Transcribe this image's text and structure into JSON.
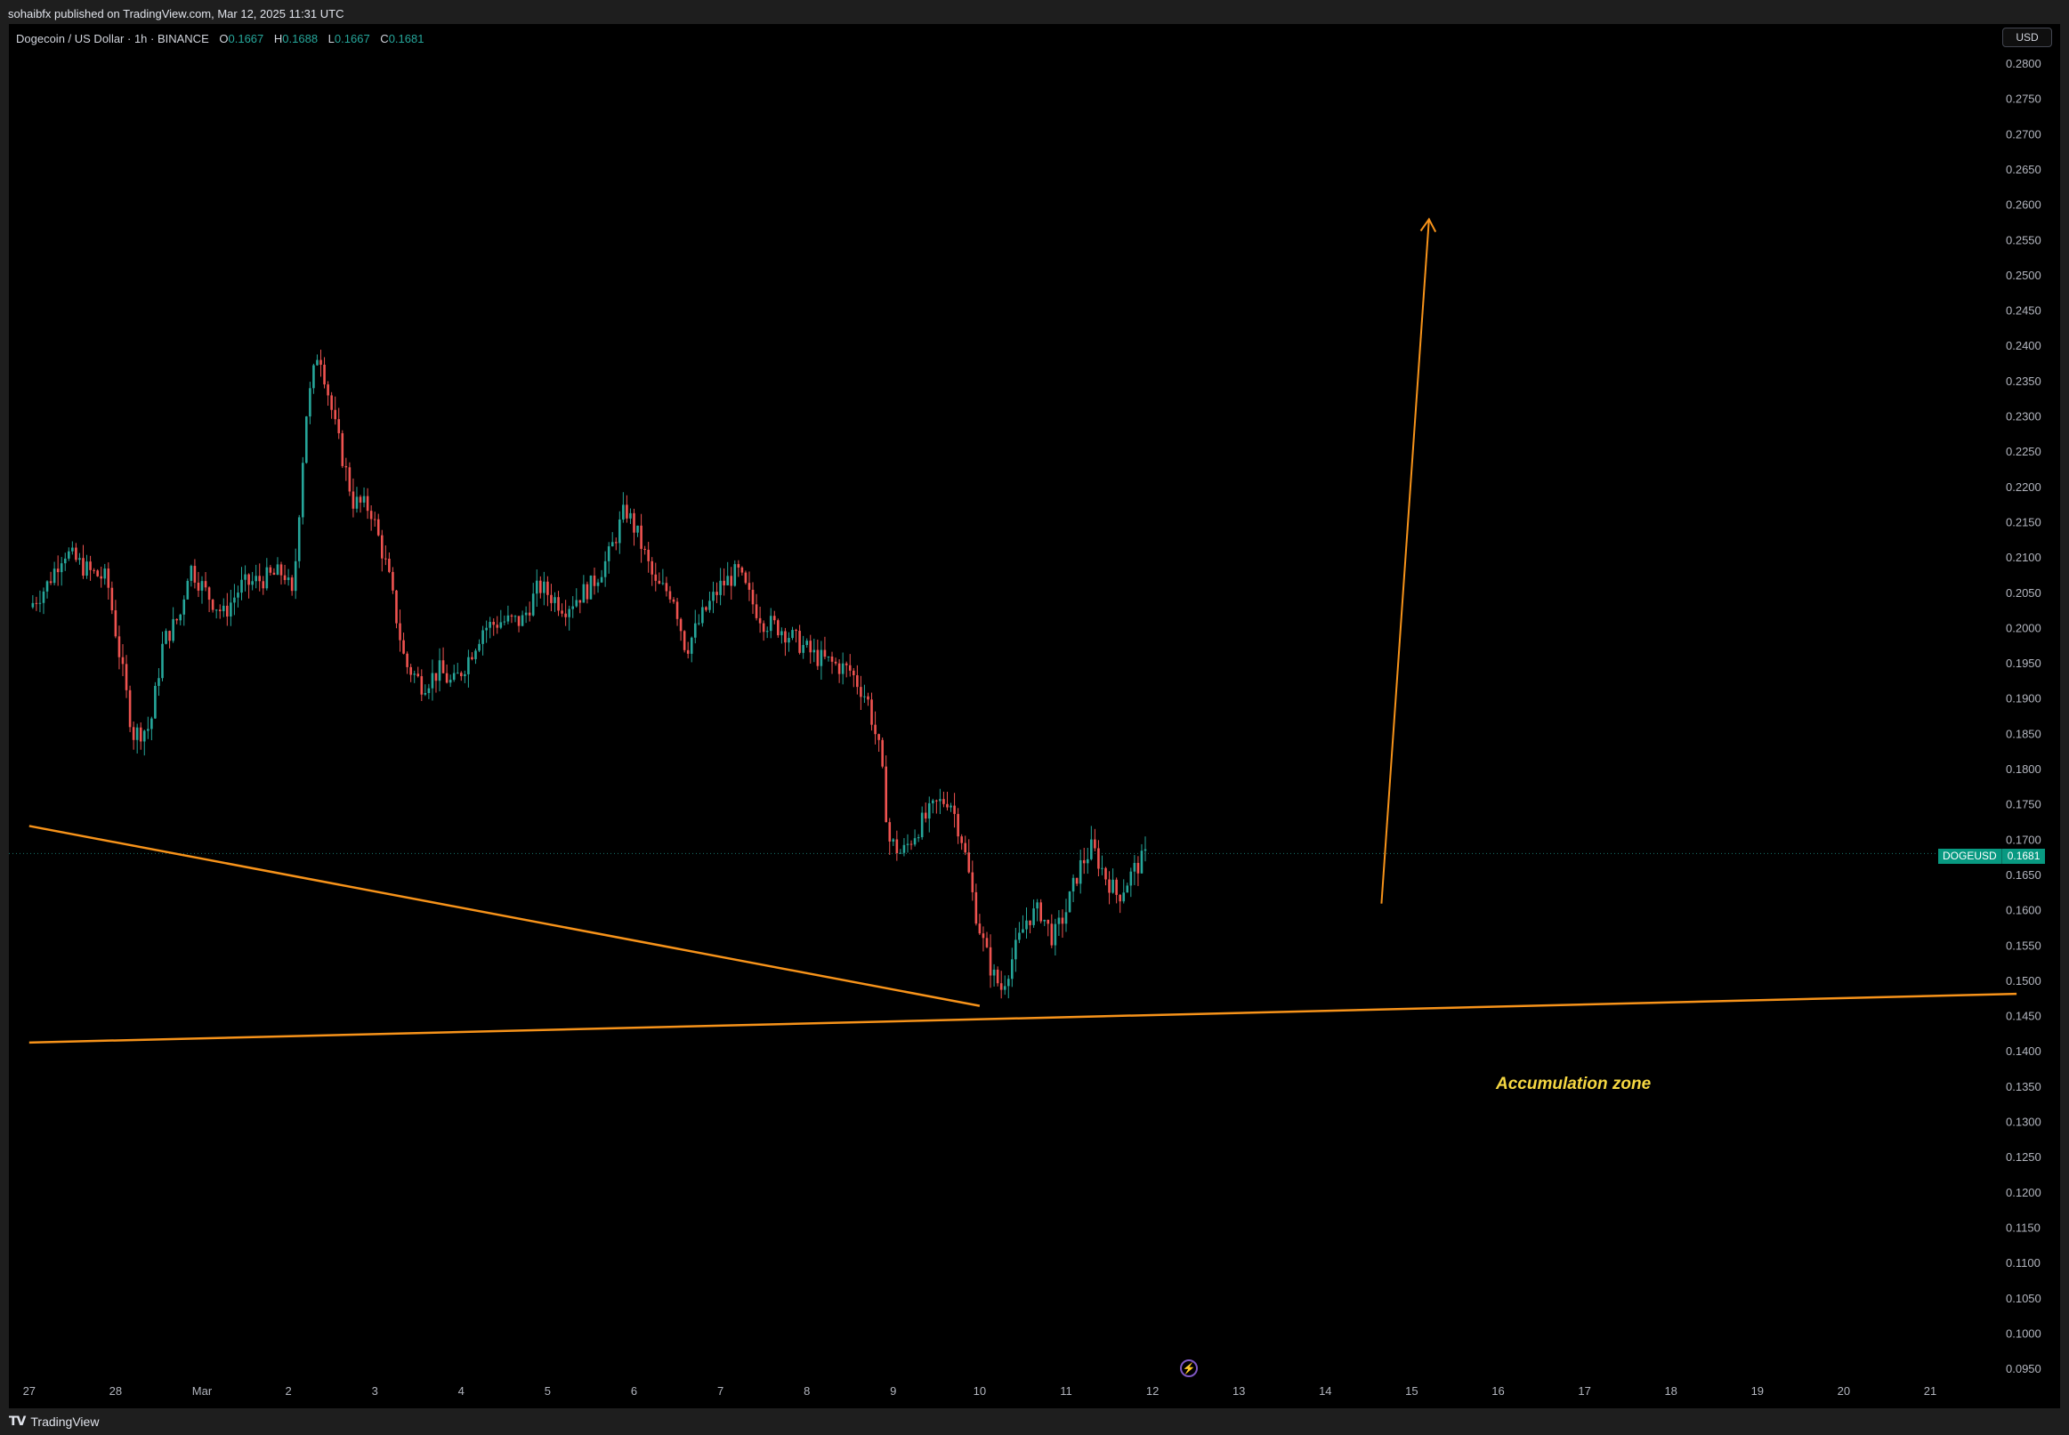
{
  "header": {
    "published": "sohaibfx published on TradingView.com, Mar 12, 2025 11:31 UTC"
  },
  "footer": {
    "brand": "TradingView"
  },
  "legend": {
    "title": "Dogecoin / US Dollar · 1h · BINANCE",
    "o_label": "O",
    "o": "0.1667",
    "h_label": "H",
    "h": "0.1688",
    "l_label": "L",
    "l": "0.1667",
    "c_label": "C",
    "c": "0.1681"
  },
  "currency_button": "USD",
  "price_tag": {
    "symbol": "DOGEUSD",
    "value": "0.1681"
  },
  "annotation": "Accumulation zone",
  "colors": {
    "up": "#26a69a",
    "down": "#ef5350",
    "drawing": "#f7931a",
    "background": "#000000",
    "annotation": "#f5d742"
  },
  "icons": {
    "flash": "lightning-icon",
    "logo": "tradingview-logo-icon"
  },
  "chart_data": {
    "type": "candlestick",
    "ylim": [
      0.0925,
      0.2825
    ],
    "y_ticks": [
      "0.2800",
      "0.2750",
      "0.2700",
      "0.2650",
      "0.2600",
      "0.2550",
      "0.2500",
      "0.2450",
      "0.2400",
      "0.2350",
      "0.2300",
      "0.2250",
      "0.2200",
      "0.2150",
      "0.2100",
      "0.2050",
      "0.2000",
      "0.1950",
      "0.1900",
      "0.1850",
      "0.1800",
      "0.1750",
      "0.1700",
      "0.1650",
      "0.1600",
      "0.1550",
      "0.1500",
      "0.1450",
      "0.1400",
      "0.1350",
      "0.1300",
      "0.1250",
      "0.1200",
      "0.1150",
      "0.1100",
      "0.1050",
      "0.1000",
      "0.0950"
    ],
    "x_ticks": [
      "27",
      "28",
      "Mar",
      "2",
      "3",
      "4",
      "5",
      "6",
      "7",
      "8",
      "9",
      "10",
      "11",
      "12",
      "13",
      "14",
      "15",
      "16",
      "17",
      "18",
      "19",
      "20",
      "21"
    ],
    "x_ticks_days": [
      -2,
      -1,
      0,
      1,
      2,
      3,
      4,
      5,
      6,
      7,
      8,
      9,
      10,
      11,
      12,
      13,
      14,
      15,
      16,
      17,
      18,
      19,
      20
    ],
    "last_price": 0.1681,
    "close_path": [
      [
        -2.0,
        0.203
      ],
      [
        -1.8,
        0.206
      ],
      [
        -1.6,
        0.211
      ],
      [
        -1.3,
        0.208
      ],
      [
        -1.1,
        0.207
      ],
      [
        -0.95,
        0.196
      ],
      [
        -0.8,
        0.185
      ],
      [
        -0.6,
        0.186
      ],
      [
        -0.45,
        0.198
      ],
      [
        -0.25,
        0.202
      ],
      [
        -0.15,
        0.209
      ],
      [
        0.05,
        0.205
      ],
      [
        0.25,
        0.202
      ],
      [
        0.45,
        0.206
      ],
      [
        0.7,
        0.207
      ],
      [
        0.95,
        0.208
      ],
      [
        1.05,
        0.204
      ],
      [
        1.2,
        0.23
      ],
      [
        1.35,
        0.24
      ],
      [
        1.55,
        0.228
      ],
      [
        1.75,
        0.218
      ],
      [
        1.95,
        0.217
      ],
      [
        2.15,
        0.208
      ],
      [
        2.35,
        0.195
      ],
      [
        2.55,
        0.192
      ],
      [
        2.75,
        0.194
      ],
      [
        2.9,
        0.192
      ],
      [
        3.05,
        0.195
      ],
      [
        3.25,
        0.2
      ],
      [
        3.45,
        0.201
      ],
      [
        3.7,
        0.201
      ],
      [
        3.9,
        0.206
      ],
      [
        4.2,
        0.203
      ],
      [
        4.5,
        0.206
      ],
      [
        4.7,
        0.21
      ],
      [
        4.9,
        0.217
      ],
      [
        5.05,
        0.213
      ],
      [
        5.25,
        0.206
      ],
      [
        5.45,
        0.205
      ],
      [
        5.6,
        0.197
      ],
      [
        5.8,
        0.202
      ],
      [
        6.0,
        0.206
      ],
      [
        6.2,
        0.208
      ],
      [
        6.35,
        0.204
      ],
      [
        6.5,
        0.201
      ],
      [
        6.7,
        0.2
      ],
      [
        6.9,
        0.198
      ],
      [
        7.1,
        0.196
      ],
      [
        7.3,
        0.195
      ],
      [
        7.5,
        0.194
      ],
      [
        7.7,
        0.19
      ],
      [
        7.85,
        0.182
      ],
      [
        7.95,
        0.17
      ],
      [
        8.1,
        0.168
      ],
      [
        8.3,
        0.172
      ],
      [
        8.5,
        0.175
      ],
      [
        8.65,
        0.176
      ],
      [
        8.8,
        0.17
      ],
      [
        8.95,
        0.16
      ],
      [
        9.05,
        0.155
      ],
      [
        9.15,
        0.151
      ],
      [
        9.25,
        0.149
      ],
      [
        9.4,
        0.154
      ],
      [
        9.55,
        0.159
      ],
      [
        9.7,
        0.16
      ],
      [
        9.85,
        0.156
      ],
      [
        10.0,
        0.16
      ],
      [
        10.15,
        0.166
      ],
      [
        10.3,
        0.169
      ],
      [
        10.45,
        0.165
      ],
      [
        10.6,
        0.162
      ],
      [
        10.8,
        0.166
      ],
      [
        10.95,
        0.1681
      ]
    ],
    "drawings": [
      {
        "type": "trendline",
        "name": "falling-trendline",
        "points": [
          [
            -2.0,
            0.172
          ],
          [
            9.0,
            0.1465
          ]
        ]
      },
      {
        "type": "trendline",
        "name": "support-trendline",
        "points": [
          [
            -2.0,
            0.1413
          ],
          [
            21.0,
            0.1482
          ]
        ]
      },
      {
        "type": "arrow",
        "name": "target-arrow",
        "points": [
          [
            13.65,
            0.161
          ],
          [
            14.2,
            0.258
          ]
        ]
      }
    ]
  }
}
